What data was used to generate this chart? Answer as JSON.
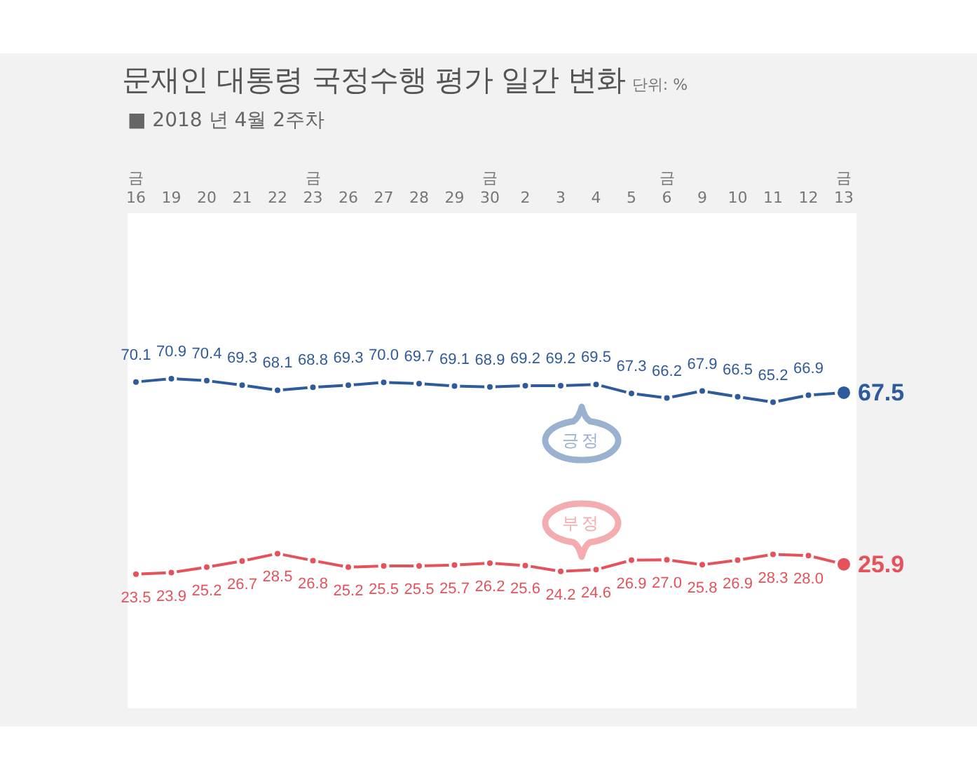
{
  "chart_data": {
    "type": "line",
    "title": "문재인 대통령 국정수행 평가 일간 변화",
    "subtitle": "■ 2018 년 4월 2주차",
    "annotations": [
      "단위: %"
    ],
    "categories": [
      "금\n16",
      "19",
      "20",
      "21",
      "22",
      "금\n23",
      "26",
      "27",
      "28",
      "29",
      "금\n30",
      "2",
      "3",
      "4",
      "5",
      "금\n6",
      "9",
      "10",
      "11",
      "12",
      "금\n13"
    ],
    "series": [
      {
        "name": "긍정",
        "color": "#2d5b9c",
        "values": [
          70.1,
          70.9,
          70.4,
          69.3,
          68.1,
          68.8,
          69.3,
          70.0,
          69.7,
          69.1,
          68.9,
          69.2,
          69.2,
          69.5,
          67.3,
          66.2,
          67.9,
          66.5,
          65.2,
          66.9,
          67.5
        ],
        "value_labels": [
          "70.1",
          "70.9",
          "70.4",
          "69.3",
          "68.1",
          "68.8",
          "69.3",
          "70.0",
          "69.7",
          "69.1",
          "68.9",
          "69.2",
          "69.2",
          "69.5",
          "67.3",
          "66.2",
          "67.9",
          "66.5",
          "65.2",
          "66.9",
          "67.5"
        ]
      },
      {
        "name": "부정",
        "color": "#e5525a",
        "values": [
          23.5,
          23.9,
          25.2,
          26.7,
          28.5,
          26.8,
          25.2,
          25.5,
          25.5,
          25.7,
          26.2,
          25.6,
          24.2,
          24.6,
          26.9,
          27.0,
          25.8,
          26.9,
          28.3,
          28.0,
          25.9
        ],
        "value_labels": [
          "23.5",
          "23.9",
          "25.2",
          "26.7",
          "28.5",
          "26.8",
          "25.2",
          "25.5",
          "25.5",
          "25.7",
          "26.2",
          "25.6",
          "24.2",
          "24.6",
          "26.9",
          "27.0",
          "25.8",
          "26.9",
          "28.3",
          "28.0",
          "25.9"
        ]
      }
    ],
    "ylim": [
      -9,
      111
    ],
    "tick_labels": "x",
    "marker": "circle",
    "line_style": "solid"
  }
}
